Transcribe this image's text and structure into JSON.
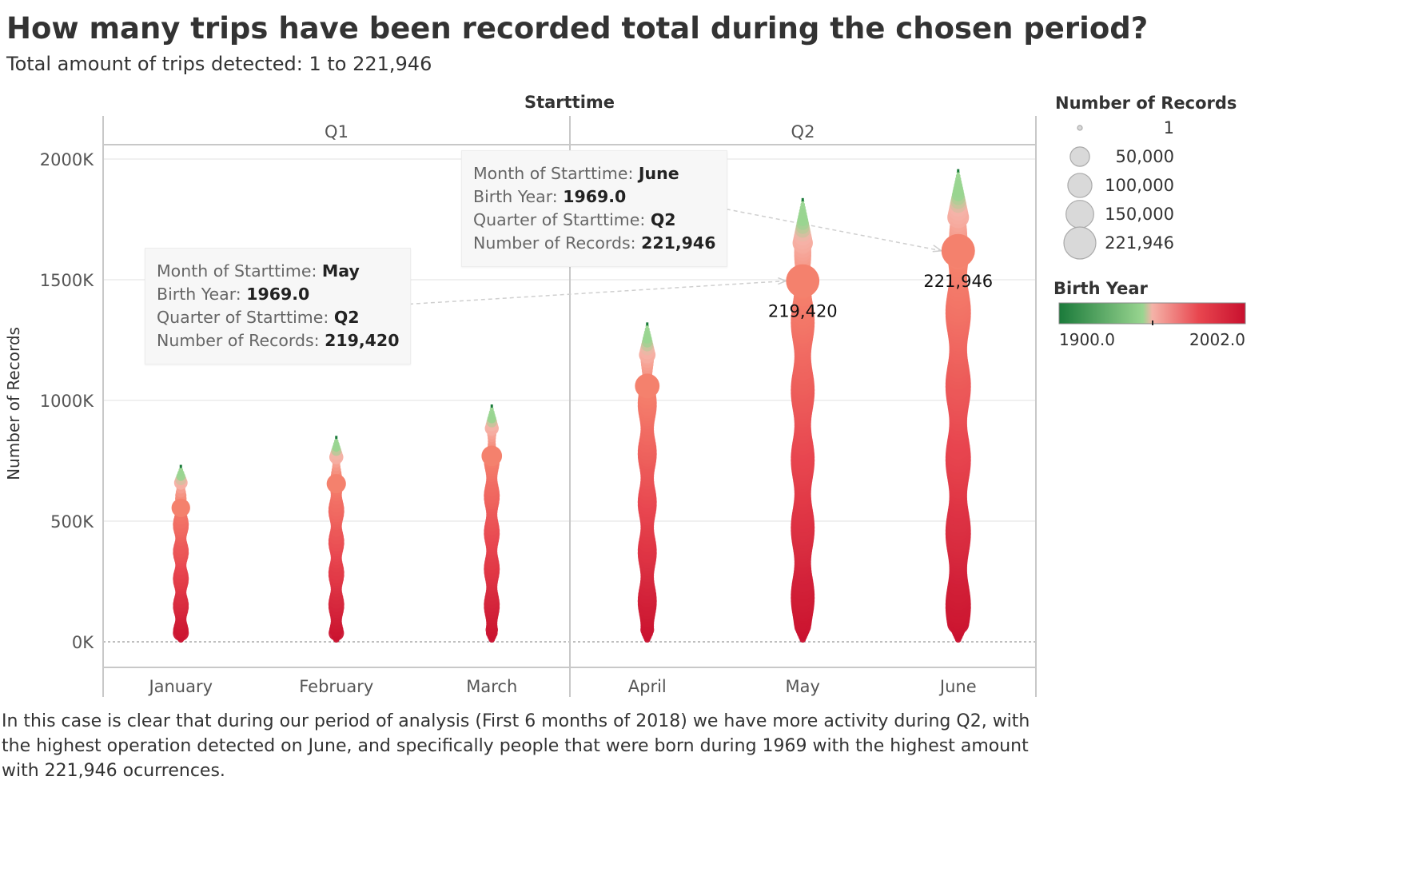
{
  "title": "How many trips have been recorded total during the chosen period?",
  "subtitle": "Total amount of trips detected: 1 to 221,946",
  "footer": "In this case is clear that during our period of analysis (First 6 months of 2018) we have more activity during Q2,  with the highest operation detected on June, and specifically people that were born during 1969 with the highest amount with 221,946 ocurrences.",
  "colors": {
    "green_dark": "#1a7a3a",
    "green_light": "#99d590",
    "pink_light": "#f5b3a8",
    "salmon": "#f4816d",
    "red": "#e8464f",
    "red_dark": "#c8102e",
    "gridline": "#ebebeb",
    "axis": "#c8c8c8"
  },
  "chart_data": {
    "type": "scatter",
    "column_header": "Starttime",
    "quarters": [
      {
        "label": "Q1",
        "months": [
          "January",
          "February",
          "March"
        ]
      },
      {
        "label": "Q2",
        "months": [
          "April",
          "May",
          "June"
        ]
      }
    ],
    "categories": [
      "January",
      "February",
      "March",
      "April",
      "May",
      "June"
    ],
    "ylabel": "Number of Records",
    "ylim": [
      0,
      2000000
    ],
    "yticks": [
      0,
      500000,
      1000000,
      1500000,
      2000000
    ],
    "ytick_labels": [
      "0K",
      "500K",
      "1000K",
      "1500K",
      "2000K"
    ],
    "monthly_totals": [
      720000,
      840000,
      970000,
      1310000,
      1825000,
      1945000
    ],
    "birth_year_1969": {
      "y_center": [
        555000,
        655000,
        770000,
        1060000,
        1495000,
        1620000
      ],
      "records": [
        45000,
        50000,
        60000,
        100000,
        219420,
        221946
      ]
    },
    "data_labels": [
      {
        "month": "May",
        "text": "219,420"
      },
      {
        "month": "June",
        "text": "221,946"
      }
    ],
    "size_legend": {
      "title": "Number of Records",
      "values": [
        1,
        50000,
        100000,
        150000,
        221946
      ],
      "labels": [
        "1",
        "50,000",
        "100,000",
        "150,000",
        "221,946"
      ]
    },
    "color_legend": {
      "title": "Birth Year",
      "min_label": "1900.0",
      "max_label": "2002.0",
      "min": 1900,
      "max": 2002
    },
    "tooltips": [
      {
        "month": "May",
        "fields": [
          {
            "key": "Month of Starttime:",
            "value": "May"
          },
          {
            "key": "Birth Year:",
            "value": "1969.0"
          },
          {
            "key": "Quarter of Starttime:",
            "value": "Q2"
          },
          {
            "key": "Number of Records:",
            "value": "219,420"
          }
        ]
      },
      {
        "month": "June",
        "fields": [
          {
            "key": "Month of Starttime:",
            "value": "June"
          },
          {
            "key": "Birth Year:",
            "value": "1969.0"
          },
          {
            "key": "Quarter of Starttime:",
            "value": "Q2"
          },
          {
            "key": "Number of Records:",
            "value": "221,946"
          }
        ]
      }
    ]
  }
}
